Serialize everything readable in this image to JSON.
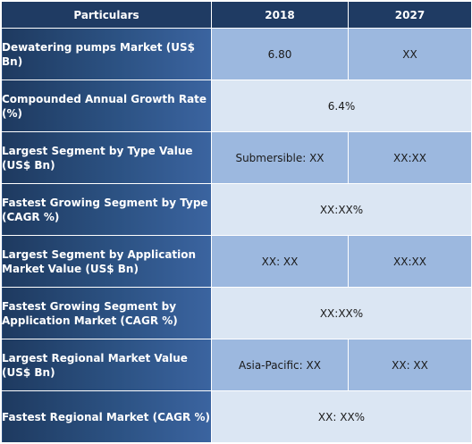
{
  "header": {
    "col1": "Particulars",
    "col2": "2018",
    "col3": "2027"
  },
  "rows": [
    {
      "label": "Dewatering pumps  Market (US$ Bn)",
      "v2018": "6.80",
      "v2027": "XX"
    },
    {
      "label": "Compounded Annual Growth Rate (%)",
      "value": "6.4%"
    },
    {
      "label": "Largest Segment by Type Value (US$ Bn)",
      "v2018": "Submersible: XX",
      "v2027": "XX:XX"
    },
    {
      "label": "Fastest Growing Segment by Type (CAGR %)",
      "value": "XX:XX%"
    },
    {
      "label": "Largest Segment by Application Market Value (US$ Bn)",
      "v2018": "XX: XX",
      "v2027": "XX:XX"
    },
    {
      "label": "Fastest Growing Segment by Application Market (CAGR %)",
      "value": "XX:XX%"
    },
    {
      "label": "Largest Regional Market Value (US$ Bn)",
      "v2018": "Asia-Pacific: XX",
      "v2027": "XX: XX"
    },
    {
      "label": "Fastest Regional Market (CAGR %)",
      "value": "XX: XX%"
    }
  ]
}
